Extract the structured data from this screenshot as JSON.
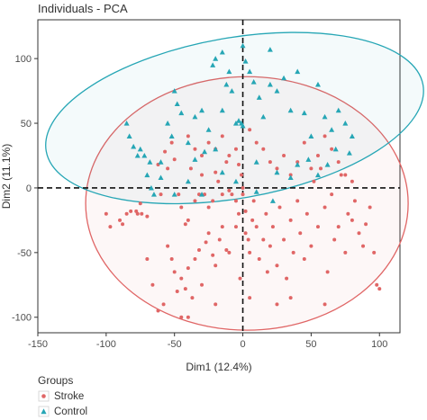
{
  "chart_data": {
    "type": "scatter",
    "title": "Individuals - PCA",
    "xlabel": "Dim1 (12.4%)",
    "ylabel": "Dim2 (11.1%)",
    "xlim": [
      -150,
      115
    ],
    "ylim": [
      -112,
      130
    ],
    "xticks": [
      -150,
      -100,
      -50,
      0,
      50,
      100
    ],
    "yticks": [
      -100,
      -50,
      0,
      50,
      100
    ],
    "grid": false,
    "reference_lines": {
      "x": 0,
      "y": 0,
      "style": "dashed"
    },
    "legend": {
      "title": "Groups",
      "placement": "bottom-left",
      "entries": [
        "Stroke",
        "Control"
      ]
    },
    "colors": {
      "Stroke": "#e06666",
      "Control": "#26a6b5",
      "frame": "#333333"
    },
    "series": [
      {
        "name": "Stroke",
        "marker": "circle",
        "points": [
          [
            -100,
            -20
          ],
          [
            -97,
            -30
          ],
          [
            -90,
            -25
          ],
          [
            -88,
            -28
          ],
          [
            -85,
            -20
          ],
          [
            -82,
            -18
          ],
          [
            -78,
            -18
          ],
          [
            -77,
            -20
          ],
          [
            -75,
            -12
          ],
          [
            -74,
            -20
          ],
          [
            -70,
            -22
          ],
          [
            -62,
            18
          ],
          [
            -60,
            -5
          ],
          [
            -57,
            28
          ],
          [
            -55,
            15
          ],
          [
            -52,
            35
          ],
          [
            -50,
            22
          ],
          [
            -47,
            -5
          ],
          [
            -45,
            -15
          ],
          [
            -42,
            -28
          ],
          [
            -40,
            -25
          ],
          [
            -38,
            15
          ],
          [
            -35,
            -10
          ],
          [
            -32,
            -5
          ],
          [
            -30,
            10
          ],
          [
            -28,
            -5
          ],
          [
            -25,
            -15
          ],
          [
            -22,
            -10
          ],
          [
            -20,
            12
          ],
          [
            -18,
            5
          ],
          [
            -15,
            -5
          ],
          [
            -12,
            20
          ],
          [
            -10,
            -2
          ],
          [
            -8,
            -5
          ],
          [
            -5,
            -10
          ],
          [
            -3,
            18
          ],
          [
            -1,
            10
          ],
          [
            0,
            0
          ],
          [
            -55,
            -45
          ],
          [
            -52,
            -55
          ],
          [
            -50,
            -65
          ],
          [
            -48,
            -80
          ],
          [
            -45,
            -70
          ],
          [
            -42,
            -78
          ],
          [
            -40,
            -62
          ],
          [
            -37,
            -85
          ],
          [
            -35,
            -55
          ],
          [
            -32,
            -48
          ],
          [
            -30,
            -75
          ],
          [
            -27,
            -42
          ],
          [
            -25,
            -35
          ],
          [
            -22,
            -52
          ],
          [
            -20,
            -60
          ],
          [
            -17,
            -40
          ],
          [
            -15,
            -30
          ],
          [
            -12,
            -48
          ],
          [
            -10,
            -50
          ],
          [
            -5,
            -30
          ],
          [
            -3,
            -20
          ],
          [
            -2,
            -70
          ],
          [
            0,
            -5
          ],
          [
            2,
            -18
          ],
          [
            2,
            -35
          ],
          [
            4,
            -40
          ],
          [
            5,
            -50
          ],
          [
            7,
            -25
          ],
          [
            8,
            -10
          ],
          [
            10,
            -30
          ],
          [
            12,
            -55
          ],
          [
            15,
            -40
          ],
          [
            17,
            -20
          ],
          [
            18,
            -65
          ],
          [
            20,
            -45
          ],
          [
            22,
            -30
          ],
          [
            25,
            -60
          ],
          [
            27,
            -15
          ],
          [
            30,
            -40
          ],
          [
            32,
            -70
          ],
          [
            35,
            -25
          ],
          [
            37,
            -50
          ],
          [
            40,
            -10
          ],
          [
            42,
            -35
          ],
          [
            45,
            -55
          ],
          [
            47,
            -20
          ],
          [
            50,
            -45
          ],
          [
            52,
            5
          ],
          [
            55,
            -30
          ],
          [
            57,
            15
          ],
          [
            60,
            -15
          ],
          [
            62,
            -65
          ],
          [
            65,
            -5
          ],
          [
            67,
            -40
          ],
          [
            70,
            -30
          ],
          [
            72,
            10
          ],
          [
            75,
            -50
          ],
          [
            77,
            -20
          ],
          [
            80,
            -25
          ],
          [
            82,
            -10
          ],
          [
            85,
            -35
          ],
          [
            88,
            -45
          ],
          [
            90,
            -28
          ],
          [
            93,
            -15
          ],
          [
            96,
            -50
          ],
          [
            98,
            -75
          ],
          [
            100,
            -78
          ],
          [
            -40,
            40
          ],
          [
            -35,
            30
          ],
          [
            -30,
            25
          ],
          [
            -25,
            35
          ],
          [
            -20,
            30
          ],
          [
            -15,
            40
          ],
          [
            -10,
            25
          ],
          [
            -5,
            30
          ],
          [
            5,
            45
          ],
          [
            10,
            35
          ],
          [
            15,
            30
          ],
          [
            20,
            20
          ],
          [
            25,
            15
          ],
          [
            30,
            25
          ],
          [
            35,
            10
          ],
          [
            40,
            20
          ],
          [
            45,
            35
          ],
          [
            50,
            15
          ],
          [
            55,
            25
          ],
          [
            60,
            40
          ],
          [
            65,
            30
          ],
          [
            70,
            20
          ],
          [
            75,
            10
          ],
          [
            80,
            5
          ],
          [
            -45,
            -100
          ],
          [
            -40,
            -100
          ],
          [
            -58,
            -90
          ],
          [
            -62,
            -95
          ],
          [
            -66,
            -75
          ],
          [
            -70,
            -55
          ],
          [
            5,
            -85
          ],
          [
            25,
            -90
          ],
          [
            60,
            -90
          ],
          [
            35,
            -85
          ],
          [
            -20,
            -90
          ]
        ]
      },
      {
        "name": "Control",
        "marker": "triangle",
        "points": [
          [
            -85,
            50
          ],
          [
            -83,
            40
          ],
          [
            -80,
            32
          ],
          [
            -77,
            25
          ],
          [
            -75,
            30
          ],
          [
            -72,
            25
          ],
          [
            -70,
            10
          ],
          [
            -68,
            20
          ],
          [
            -67,
            0
          ],
          [
            -65,
            -5
          ],
          [
            -60,
            20
          ],
          [
            -55,
            50
          ],
          [
            -52,
            40
          ],
          [
            -50,
            75
          ],
          [
            -48,
            65
          ],
          [
            -45,
            58
          ],
          [
            -40,
            35
          ],
          [
            -35,
            55
          ],
          [
            -30,
            60
          ],
          [
            -25,
            45
          ],
          [
            -20,
            30
          ],
          [
            -15,
            60
          ],
          [
            -12,
            80
          ],
          [
            -10,
            90
          ],
          [
            -8,
            75
          ],
          [
            -5,
            50
          ],
          [
            -3,
            52
          ],
          [
            -1,
            50
          ],
          [
            0,
            48
          ],
          [
            2,
            98
          ],
          [
            5,
            90
          ],
          [
            8,
            82
          ],
          [
            12,
            70
          ],
          [
            15,
            55
          ],
          [
            20,
            80
          ],
          [
            25,
            75
          ],
          [
            30,
            85
          ],
          [
            35,
            60
          ],
          [
            40,
            90
          ],
          [
            45,
            58
          ],
          [
            50,
            40
          ],
          [
            55,
            80
          ],
          [
            60,
            55
          ],
          [
            65,
            45
          ],
          [
            70,
            60
          ],
          [
            75,
            50
          ],
          [
            80,
            40
          ],
          [
            -20,
            100
          ],
          [
            -15,
            105
          ],
          [
            0,
            110
          ],
          [
            20,
            107
          ],
          [
            -35,
            22
          ],
          [
            -28,
            28
          ],
          [
            10,
            20
          ],
          [
            25,
            12
          ],
          [
            40,
            18
          ],
          [
            55,
            10
          ],
          [
            68,
            30
          ],
          [
            -60,
            8
          ],
          [
            -50,
            -5
          ],
          [
            -40,
            5
          ],
          [
            -30,
            -5
          ],
          [
            -15,
            12
          ],
          [
            -5,
            5
          ],
          [
            10,
            -3
          ],
          [
            22,
            -10
          ],
          [
            35,
            8
          ],
          [
            48,
            22
          ],
          [
            62,
            18
          ],
          [
            78,
            27
          ],
          [
            -22,
            95
          ]
        ]
      }
    ],
    "ellipses": [
      {
        "group": "Stroke",
        "center": [
          3,
          -12
        ],
        "semi_axes": [
          118,
          98
        ],
        "rotation_deg": 0
      },
      {
        "group": "Control",
        "center": [
          -6,
          54
        ],
        "semi_axes": [
          140,
          62
        ],
        "rotation_deg": 10
      }
    ]
  }
}
